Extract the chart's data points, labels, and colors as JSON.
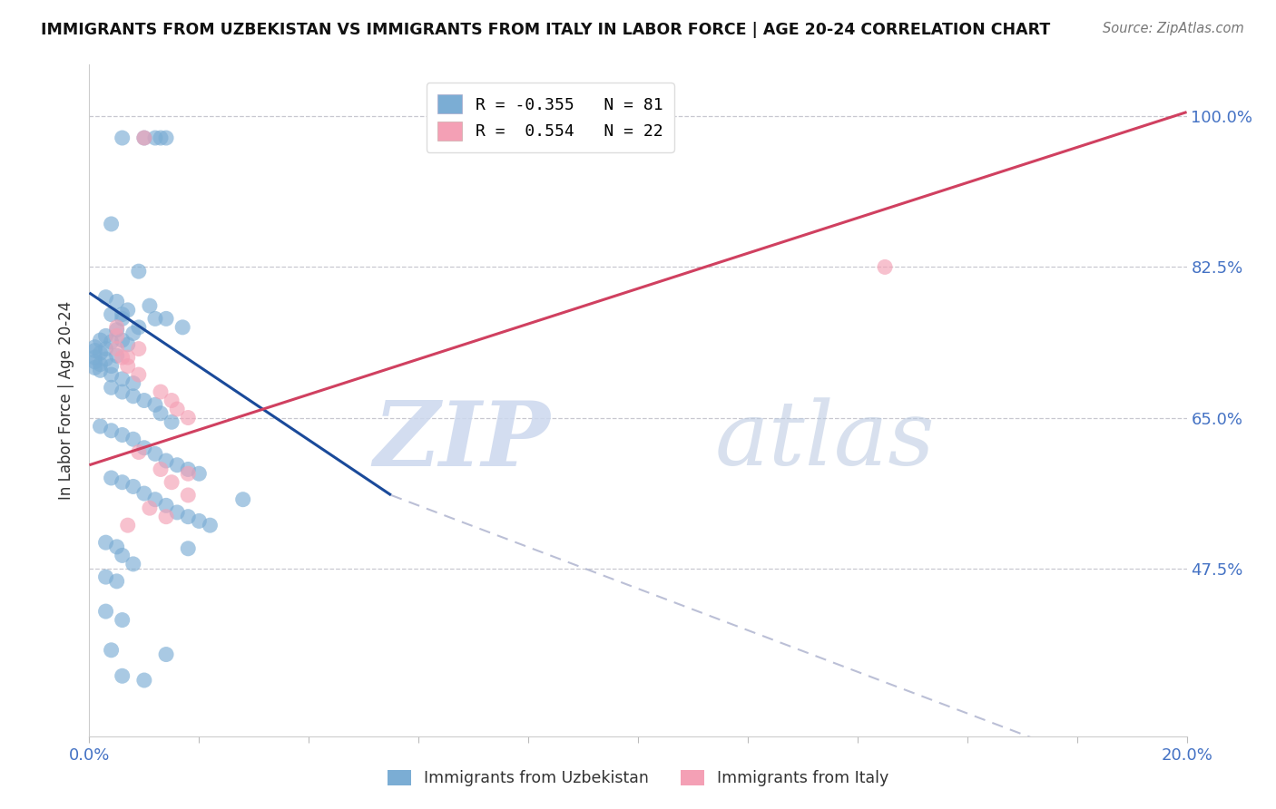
{
  "title": "IMMIGRANTS FROM UZBEKISTAN VS IMMIGRANTS FROM ITALY IN LABOR FORCE | AGE 20-24 CORRELATION CHART",
  "source": "Source: ZipAtlas.com",
  "ylabel": "In Labor Force | Age 20-24",
  "xlim": [
    0.0,
    0.2
  ],
  "ylim": [
    0.28,
    1.06
  ],
  "ytick_positions": [
    0.475,
    0.65,
    0.825,
    1.0
  ],
  "ytick_labels": [
    "47.5%",
    "65.0%",
    "82.5%",
    "100.0%"
  ],
  "xtick_positions": [
    0.0,
    0.02,
    0.04,
    0.06,
    0.08,
    0.1,
    0.12,
    0.14,
    0.16,
    0.18,
    0.2
  ],
  "xtick_labels": [
    "0.0%",
    "",
    "",
    "",
    "",
    "",
    "",
    "",
    "",
    "",
    "20.0%"
  ],
  "grid_color": "#c8c8d0",
  "uzbekistan_color": "#7badd4",
  "italy_color": "#f4a0b5",
  "uzbekistan_line_color": "#1a4a9a",
  "italy_line_color": "#d04060",
  "uzbekistan_trendline_solid": [
    [
      0.0,
      0.795
    ],
    [
      0.055,
      0.56
    ]
  ],
  "uzbekistan_trendline_dash": [
    [
      0.055,
      0.56
    ],
    [
      0.2,
      0.21
    ]
  ],
  "italy_trendline": [
    [
      0.0,
      0.595
    ],
    [
      0.2,
      1.005
    ]
  ],
  "legend_R_uzbekistan": "-0.355",
  "legend_N_uzbekistan": "81",
  "legend_R_italy": "0.554",
  "legend_N_italy": "22",
  "uzbekistan_points": [
    [
      0.006,
      0.975
    ],
    [
      0.01,
      0.975
    ],
    [
      0.012,
      0.975
    ],
    [
      0.013,
      0.975
    ],
    [
      0.014,
      0.975
    ],
    [
      0.004,
      0.875
    ],
    [
      0.009,
      0.82
    ],
    [
      0.011,
      0.78
    ],
    [
      0.006,
      0.77
    ],
    [
      0.012,
      0.765
    ],
    [
      0.014,
      0.765
    ],
    [
      0.017,
      0.755
    ],
    [
      0.003,
      0.79
    ],
    [
      0.005,
      0.785
    ],
    [
      0.007,
      0.775
    ],
    [
      0.004,
      0.77
    ],
    [
      0.006,
      0.765
    ],
    [
      0.009,
      0.755
    ],
    [
      0.005,
      0.752
    ],
    [
      0.008,
      0.748
    ],
    [
      0.003,
      0.745
    ],
    [
      0.006,
      0.74
    ],
    [
      0.002,
      0.74
    ],
    [
      0.004,
      0.738
    ],
    [
      0.007,
      0.735
    ],
    [
      0.001,
      0.732
    ],
    [
      0.003,
      0.73
    ],
    [
      0.001,
      0.728
    ],
    [
      0.002,
      0.725
    ],
    [
      0.005,
      0.722
    ],
    [
      0.001,
      0.72
    ],
    [
      0.003,
      0.718
    ],
    [
      0.001,
      0.715
    ],
    [
      0.002,
      0.712
    ],
    [
      0.004,
      0.71
    ],
    [
      0.001,
      0.708
    ],
    [
      0.002,
      0.705
    ],
    [
      0.004,
      0.7
    ],
    [
      0.006,
      0.695
    ],
    [
      0.008,
      0.69
    ],
    [
      0.004,
      0.685
    ],
    [
      0.006,
      0.68
    ],
    [
      0.008,
      0.675
    ],
    [
      0.01,
      0.67
    ],
    [
      0.012,
      0.665
    ],
    [
      0.013,
      0.655
    ],
    [
      0.015,
      0.645
    ],
    [
      0.002,
      0.64
    ],
    [
      0.004,
      0.635
    ],
    [
      0.006,
      0.63
    ],
    [
      0.008,
      0.625
    ],
    [
      0.01,
      0.615
    ],
    [
      0.012,
      0.608
    ],
    [
      0.014,
      0.6
    ],
    [
      0.016,
      0.595
    ],
    [
      0.018,
      0.59
    ],
    [
      0.02,
      0.585
    ],
    [
      0.004,
      0.58
    ],
    [
      0.006,
      0.575
    ],
    [
      0.008,
      0.57
    ],
    [
      0.01,
      0.562
    ],
    [
      0.012,
      0.555
    ],
    [
      0.014,
      0.548
    ],
    [
      0.016,
      0.54
    ],
    [
      0.018,
      0.535
    ],
    [
      0.02,
      0.53
    ],
    [
      0.022,
      0.525
    ],
    [
      0.003,
      0.505
    ],
    [
      0.005,
      0.5
    ],
    [
      0.018,
      0.498
    ],
    [
      0.006,
      0.49
    ],
    [
      0.008,
      0.48
    ],
    [
      0.003,
      0.465
    ],
    [
      0.005,
      0.46
    ],
    [
      0.003,
      0.425
    ],
    [
      0.006,
      0.415
    ],
    [
      0.004,
      0.38
    ],
    [
      0.014,
      0.375
    ],
    [
      0.006,
      0.35
    ],
    [
      0.01,
      0.345
    ],
    [
      0.028,
      0.555
    ]
  ],
  "italy_points": [
    [
      0.005,
      0.755
    ],
    [
      0.005,
      0.745
    ],
    [
      0.005,
      0.73
    ],
    [
      0.007,
      0.72
    ],
    [
      0.009,
      0.73
    ],
    [
      0.006,
      0.72
    ],
    [
      0.007,
      0.71
    ],
    [
      0.009,
      0.7
    ],
    [
      0.013,
      0.68
    ],
    [
      0.015,
      0.67
    ],
    [
      0.016,
      0.66
    ],
    [
      0.018,
      0.65
    ],
    [
      0.009,
      0.61
    ],
    [
      0.013,
      0.59
    ],
    [
      0.018,
      0.585
    ],
    [
      0.015,
      0.575
    ],
    [
      0.018,
      0.56
    ],
    [
      0.011,
      0.545
    ],
    [
      0.014,
      0.535
    ],
    [
      0.007,
      0.525
    ],
    [
      0.145,
      0.825
    ],
    [
      0.01,
      0.975
    ]
  ]
}
